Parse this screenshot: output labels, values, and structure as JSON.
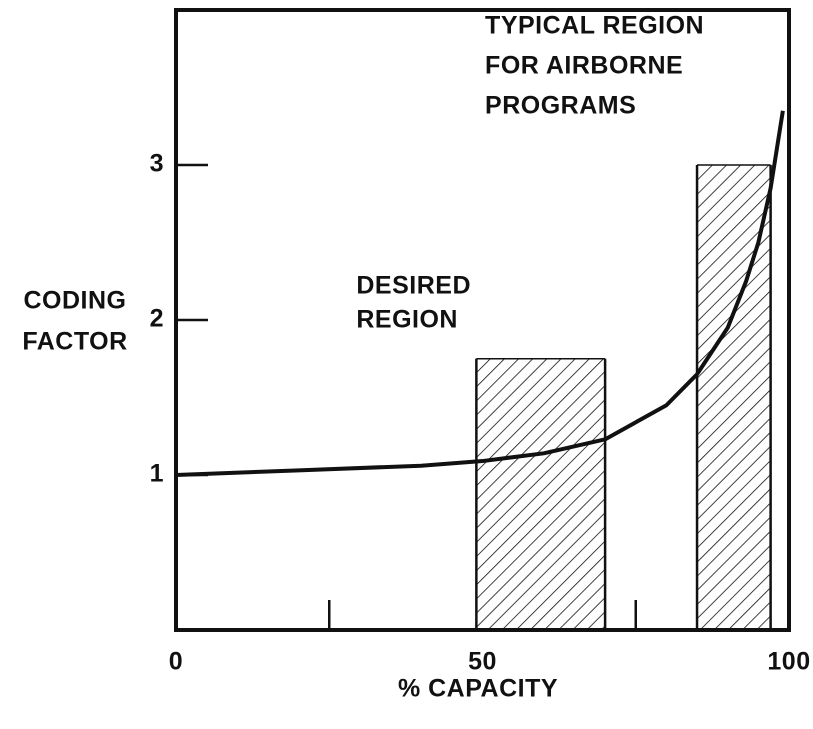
{
  "chart_data": {
    "type": "line",
    "xlabel": "% CAPACITY",
    "ylabel": [
      "CODING",
      "FACTOR"
    ],
    "xlim": [
      0,
      100
    ],
    "ylim": [
      0,
      4
    ],
    "xticks": [
      0,
      50,
      100
    ],
    "minor_xticks": [
      25,
      75
    ],
    "yticks": [
      1,
      2,
      3
    ],
    "x": [
      0,
      20,
      40,
      50,
      60,
      70,
      80,
      85,
      90,
      93,
      95,
      97,
      98,
      99
    ],
    "series": [
      {
        "color": "#111111",
        "values": [
          1.0,
          1.03,
          1.06,
          1.09,
          1.14,
          1.23,
          1.45,
          1.65,
          1.95,
          2.25,
          2.5,
          2.85,
          3.1,
          3.35
        ]
      }
    ],
    "regions": [
      {
        "label": [
          "DESIRED",
          "REGION"
        ],
        "x": [
          49,
          70
        ],
        "height": 1.75
      },
      {
        "label": [
          "TYPICAL REGION",
          "FOR AIRBORNE",
          "PROGRAMS"
        ],
        "x": [
          85,
          97
        ],
        "height": 3.0
      }
    ]
  }
}
